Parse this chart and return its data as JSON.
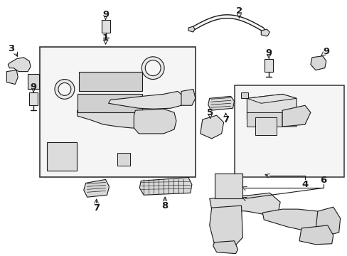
{
  "background_color": "#ffffff",
  "line_color": "#1a1a1a",
  "gray_fill": "#d8d8d8",
  "light_fill": "#eeeeee",
  "box_bg": "#f0f0f0",
  "figsize": [
    4.89,
    3.6
  ],
  "dpi": 100,
  "label_fontsize": 8.5,
  "label_fontsize_large": 9.5
}
